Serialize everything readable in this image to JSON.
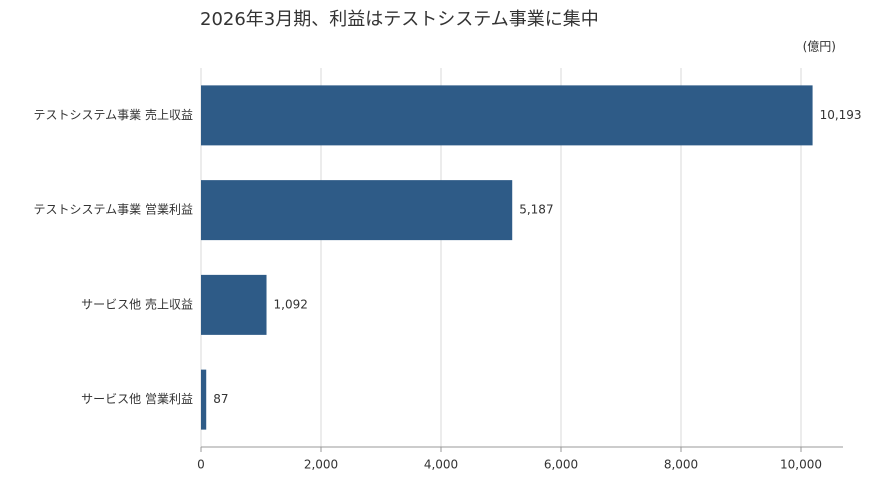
{
  "chart_data": {
    "type": "hbar",
    "title": "2026年3月期、利益はテストシステム事業に集中",
    "unit_label": "(億円)",
    "categories": [
      "テストシステム事業 売上収益",
      "テストシステム事業 営業利益",
      "サービス他 売上収益",
      "サービス他 営業利益"
    ],
    "values": [
      10193,
      5187,
      1092,
      87
    ],
    "value_labels": [
      "10,193",
      "5,187",
      "1,092",
      "87"
    ],
    "color": "#2e5b87",
    "xlim": [
      0,
      10700
    ],
    "xticks": [
      0,
      {
        "value": 2000,
        "label": "2,000"
      },
      {
        "value": 4000,
        "label": "4,000"
      },
      {
        "value": 6000,
        "label": "6,000"
      },
      {
        "value": 8000,
        "label": "8,000"
      },
      {
        "value": 10000,
        "label": "10,000"
      }
    ],
    "grid": true
  }
}
